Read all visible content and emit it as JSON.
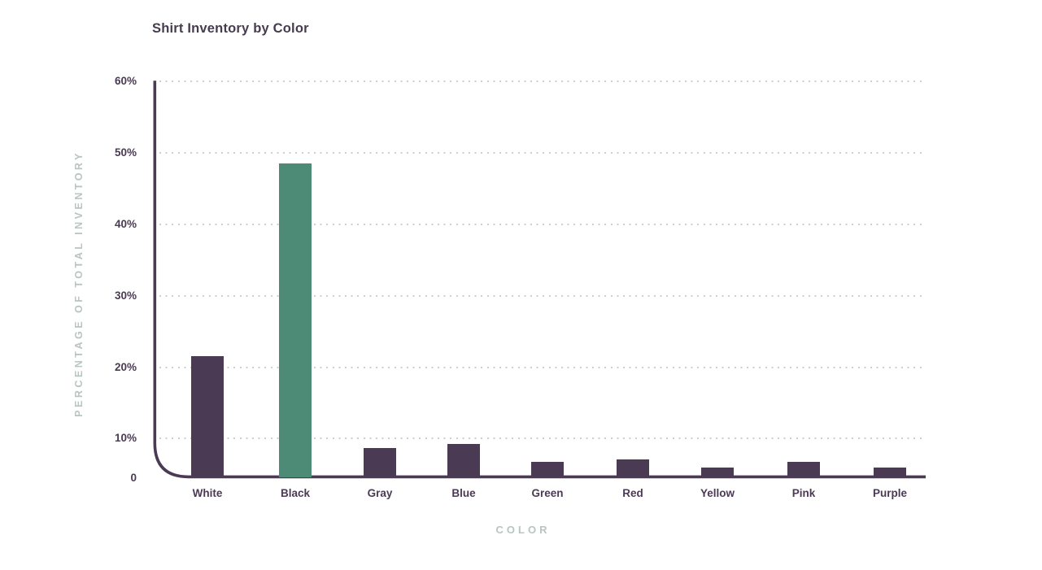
{
  "title": "Shirt Inventory by Color",
  "colors": {
    "bar_purple": "#4B3A53",
    "highlight_teal": "#4D8B76",
    "axis_purple": "#4B3A53",
    "label_purple": "#4B3A53",
    "title_purple": "#473B4F",
    "axis_title_sage": "#B9C5BF",
    "gridline_sage": "#C7D2CC",
    "background": "#FFFFFF"
  },
  "chart_data": {
    "type": "bar",
    "title": "Shirt Inventory by Color",
    "xlabel": "COLOR",
    "ylabel": "PERCENTAGE OF TOTAL INVENTORY",
    "categories": [
      "White",
      "Black",
      "Gray",
      "Blue",
      "Green",
      "Red",
      "Yellow",
      "Pink",
      "Purple"
    ],
    "values": [
      21.5,
      48.5,
      7.5,
      8.5,
      4,
      4.5,
      2.5,
      4,
      2.5
    ],
    "unit": "%",
    "highlight_category": "Black",
    "highlight_color": "#4D8B76",
    "bar_color": "#4B3A53",
    "ylim": [
      0,
      60
    ],
    "yticks": [
      0,
      10,
      20,
      30,
      40,
      50,
      60
    ],
    "ytick_labels": [
      "0",
      "10%",
      "20%",
      "30%",
      "40%",
      "50%",
      "60%"
    ],
    "grid": "horizontal-dotted",
    "legend": "none"
  }
}
